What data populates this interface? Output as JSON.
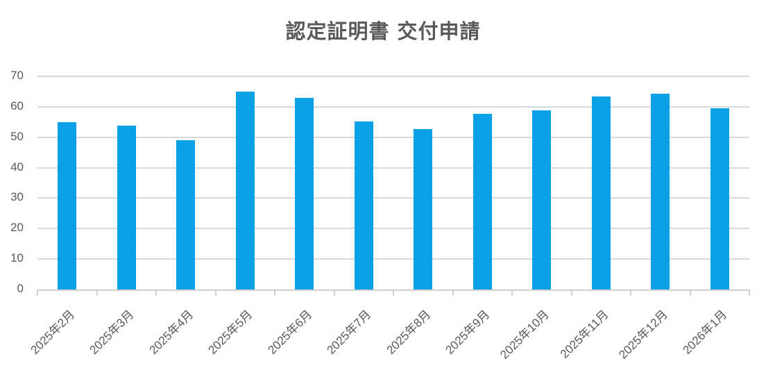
{
  "chart_data": {
    "type": "bar",
    "title": "認定証明書 交付申請",
    "xlabel": "",
    "ylabel": "",
    "ylim": [
      0,
      70
    ],
    "yticks": [
      0,
      10,
      20,
      30,
      40,
      50,
      60,
      70
    ],
    "grid": true,
    "legend": null,
    "bar_color": "#0aa0e6",
    "categories": [
      "2025年2月",
      "2025年3月",
      "2025年4月",
      "2025年5月",
      "2025年6月",
      "2025年7月",
      "2025年8月",
      "2025年9月",
      "2025年10月",
      "2025年11月",
      "2025年12月",
      "2026年1月"
    ],
    "values": [
      55,
      53.8,
      49,
      65,
      63,
      55.2,
      52.7,
      57.7,
      58.8,
      63.4,
      64.2,
      59.5
    ]
  },
  "title": "認定証明書 交付申請",
  "yaxis": {
    "ticks": [
      "0",
      "10",
      "20",
      "30",
      "40",
      "50",
      "60",
      "70"
    ]
  },
  "xaxis": {
    "labels": [
      "2025年2月",
      "2025年3月",
      "2025年4月",
      "2025年5月",
      "2025年6月",
      "2025年7月",
      "2025年8月",
      "2025年9月",
      "2025年10月",
      "2025年11月",
      "2025年12月",
      "2026年1月"
    ]
  }
}
